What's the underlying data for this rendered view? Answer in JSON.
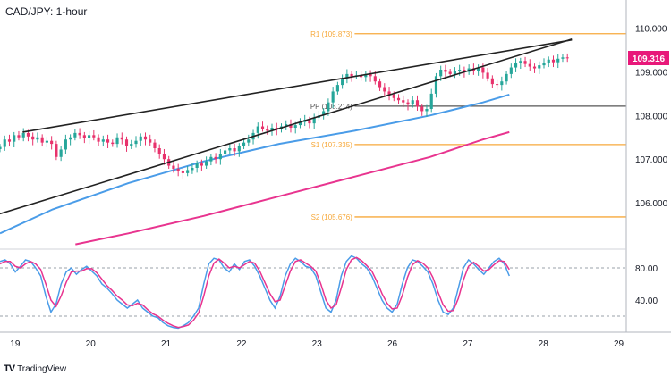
{
  "chart_data": {
    "type": "candlestick",
    "title": "CAD/JPY: 1-hour",
    "brand": "TradingView",
    "brand_logo": "TV",
    "price_axis": {
      "ticks": [
        "110.000",
        "109.000",
        "108.000",
        "107.000",
        "106.000"
      ],
      "tick_values": [
        110.0,
        109.0,
        108.0,
        107.0,
        106.0
      ],
      "ylim": [
        105.0,
        110.4
      ],
      "last_price": "109.316",
      "last_price_value": 109.316
    },
    "time_axis": {
      "labels": [
        "19",
        "20",
        "21",
        "22",
        "23",
        "26",
        "27",
        "28",
        "29"
      ],
      "positions": [
        0,
        1,
        2,
        3,
        4,
        5,
        6,
        7,
        8
      ],
      "xlim": [
        -0.2,
        8.1
      ]
    },
    "levels": [
      {
        "label": "R1 (109.873)",
        "value": 109.873,
        "color": "#f7a93b"
      },
      {
        "label": "PP (108.214)",
        "value": 108.214,
        "color": "#555555"
      },
      {
        "label": "S1 (107.335)",
        "value": 107.335,
        "color": "#f7a93b"
      },
      {
        "label": "S2 (105.676)",
        "value": 105.676,
        "color": "#f7a93b"
      }
    ],
    "trendlines": [
      {
        "name": "",
        "from": [
          0.1,
          107.62
        ],
        "to": [
          7.38,
          109.73
        ],
        "color": "#222222"
      },
      {
        "name": "",
        "from": [
          -0.2,
          105.75
        ],
        "to": [
          7.38,
          109.75
        ],
        "color": "#222222"
      }
    ],
    "moving_averages": [
      {
        "name": "",
        "color": "#4a9ce8",
        "x": [
          -0.2,
          0.5,
          1.5,
          2.5,
          3.5,
          4.5,
          5.5,
          6.2,
          6.55
        ],
        "y": [
          105.3,
          105.85,
          106.45,
          106.95,
          107.35,
          107.65,
          108.0,
          108.3,
          108.48
        ]
      },
      {
        "name": "",
        "color": "#e8348f",
        "x": [
          0.8,
          1.5,
          2.5,
          3.5,
          4.5,
          5.5,
          6.2,
          6.55
        ],
        "y": [
          105.05,
          105.3,
          105.7,
          106.15,
          106.6,
          107.05,
          107.45,
          107.62
        ]
      }
    ],
    "candles_close": [
      107.28,
      107.45,
      107.4,
      107.55,
      107.5,
      107.6,
      107.52,
      107.45,
      107.5,
      107.38,
      107.42,
      107.35,
      107.05,
      107.22,
      107.45,
      107.5,
      107.6,
      107.55,
      107.48,
      107.55,
      107.5,
      107.4,
      107.45,
      107.38,
      107.35,
      107.5,
      107.45,
      107.3,
      107.35,
      107.42,
      107.52,
      107.45,
      107.38,
      107.25,
      107.12,
      107.0,
      106.85,
      106.78,
      106.72,
      106.68,
      106.75,
      106.8,
      106.9,
      106.85,
      106.95,
      107.05,
      107.0,
      107.12,
      107.2,
      107.25,
      107.18,
      107.3,
      107.38,
      107.45,
      107.6,
      107.75,
      107.7,
      107.65,
      107.72,
      107.68,
      107.75,
      107.8,
      107.72,
      107.78,
      107.85,
      107.9,
      107.82,
      107.95,
      108.0,
      108.1,
      108.3,
      108.55,
      108.7,
      108.85,
      108.95,
      108.9,
      108.92,
      108.88,
      108.95,
      108.9,
      108.78,
      108.65,
      108.55,
      108.48,
      108.4,
      108.35,
      108.3,
      108.25,
      108.35,
      108.2,
      108.1,
      108.15,
      108.5,
      108.9,
      109.05,
      109.0,
      108.95,
      109.02,
      109.05,
      109.0,
      109.08,
      109.02,
      109.1,
      108.98,
      108.85,
      108.72,
      108.7,
      108.78,
      108.95,
      109.1,
      109.2,
      109.25,
      109.18,
      109.12,
      109.08,
      109.15,
      109.2,
      109.28,
      109.22,
      109.3,
      109.33,
      109.32
    ],
    "candles_x_range": [
      -0.2,
      7.32
    ],
    "oscillator": {
      "name": "",
      "ticks": [
        "80.00",
        "40.00"
      ],
      "tick_values": [
        80,
        40
      ],
      "ylim": [
        0,
        100
      ],
      "guides": [
        80,
        20
      ],
      "k_color": "#4a9ce8",
      "d_color": "#e8348f",
      "k": [
        88,
        90,
        85,
        75,
        82,
        90,
        88,
        80,
        70,
        45,
        25,
        35,
        60,
        75,
        80,
        72,
        78,
        82,
        76,
        70,
        60,
        55,
        48,
        40,
        35,
        30,
        35,
        40,
        30,
        25,
        20,
        18,
        12,
        8,
        6,
        5,
        8,
        12,
        20,
        30,
        60,
        85,
        92,
        90,
        80,
        75,
        85,
        78,
        88,
        90,
        82,
        70,
        55,
        40,
        30,
        45,
        70,
        85,
        92,
        88,
        82,
        80,
        70,
        50,
        30,
        25,
        40,
        70,
        88,
        95,
        92,
        85,
        80,
        70,
        55,
        40,
        30,
        25,
        35,
        60,
        80,
        90,
        88,
        82,
        75,
        60,
        40,
        25,
        22,
        30,
        55,
        80,
        90,
        85,
        78,
        72,
        80,
        88,
        92,
        85,
        70
      ],
      "d": [
        85,
        88,
        88,
        82,
        80,
        85,
        88,
        85,
        78,
        60,
        40,
        32,
        45,
        62,
        75,
        76,
        76,
        79,
        79,
        74,
        66,
        58,
        52,
        45,
        40,
        34,
        33,
        36,
        34,
        28,
        23,
        20,
        15,
        11,
        8,
        6,
        7,
        9,
        15,
        24,
        45,
        70,
        86,
        91,
        86,
        80,
        82,
        80,
        84,
        88,
        86,
        76,
        62,
        48,
        38,
        40,
        58,
        76,
        88,
        90,
        86,
        82,
        76,
        60,
        40,
        30,
        34,
        55,
        78,
        90,
        93,
        89,
        83,
        76,
        63,
        48,
        36,
        29,
        30,
        46,
        68,
        84,
        89,
        86,
        80,
        68,
        50,
        34,
        26,
        27,
        42,
        65,
        82,
        87,
        82,
        76,
        78,
        84,
        89,
        88,
        78
      ]
    }
  }
}
